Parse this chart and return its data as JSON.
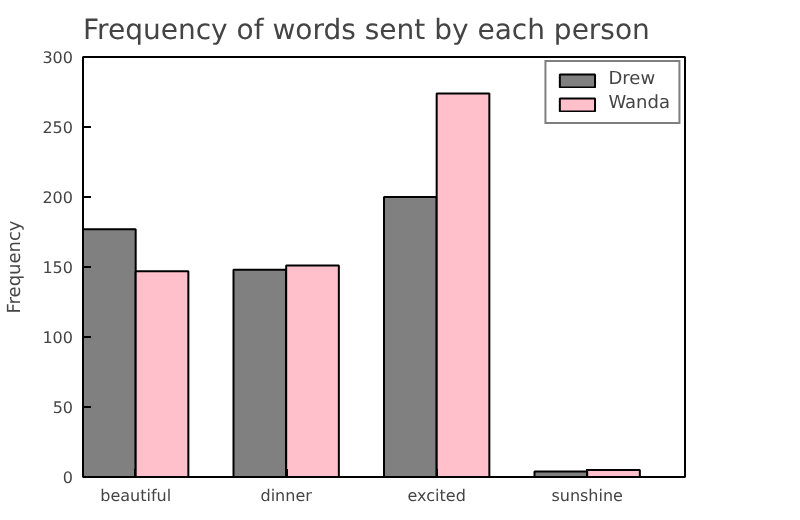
{
  "chart_data": {
    "type": "bar",
    "title": "Frequency of words sent by each person",
    "ylabel": "Frequency",
    "categories": [
      "beautiful",
      "dinner",
      "excited",
      "sunshine"
    ],
    "series": [
      {
        "name": "Drew",
        "color": "#808080",
        "values": [
          177,
          148,
          200,
          4
        ]
      },
      {
        "name": "Wanda",
        "color": "#ffc0cb",
        "values": [
          147,
          151,
          274,
          5
        ]
      }
    ],
    "ylim": [
      0,
      300
    ],
    "yticks": [
      0,
      50,
      100,
      150,
      200,
      250,
      300
    ],
    "grid": false,
    "legend": "top right"
  }
}
